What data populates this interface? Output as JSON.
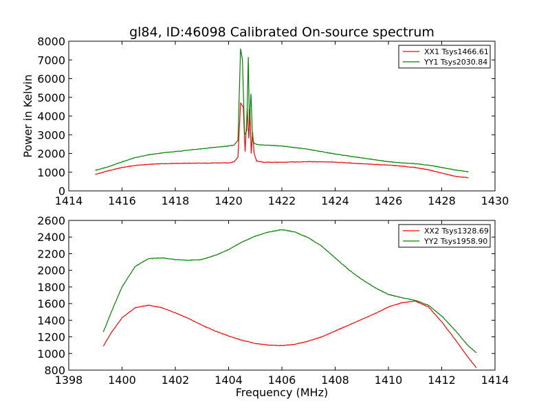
{
  "chart_data": [
    {
      "type": "line",
      "title": "gl84, ID:46098 Calibrated On-source spectrum",
      "xlabel": "",
      "ylabel": "Power in Kelvin",
      "xlim": [
        1414,
        1430
      ],
      "ylim": [
        0,
        8000
      ],
      "xticks": [
        1414,
        1416,
        1418,
        1420,
        1422,
        1424,
        1426,
        1428,
        1430
      ],
      "yticks": [
        0,
        1000,
        2000,
        3000,
        4000,
        5000,
        6000,
        7000,
        8000
      ],
      "legend_position": "top-right",
      "grid": false,
      "series": [
        {
          "name": "XX1 Tsys1466.61",
          "color": "#ff0000",
          "x": [
            1415.0,
            1415.5,
            1416.0,
            1416.5,
            1417.0,
            1417.5,
            1418.0,
            1418.5,
            1419.0,
            1419.5,
            1420.0,
            1420.2,
            1420.35,
            1420.45,
            1420.55,
            1420.62,
            1420.7,
            1420.76,
            1420.8,
            1420.85,
            1420.9,
            1420.96,
            1421.05,
            1421.3,
            1422.0,
            1423.0,
            1424.0,
            1425.0,
            1426.0,
            1426.5,
            1427.0,
            1427.5,
            1428.0,
            1428.5,
            1429.0
          ],
          "y": [
            880,
            1080,
            1250,
            1360,
            1420,
            1450,
            1470,
            1480,
            1480,
            1490,
            1500,
            1550,
            1800,
            4700,
            4500,
            2100,
            4400,
            2800,
            4350,
            2000,
            3150,
            2000,
            1600,
            1530,
            1530,
            1560,
            1540,
            1450,
            1380,
            1320,
            1250,
            1130,
            950,
            780,
            700
          ]
        },
        {
          "name": "YY1 Tsys2030.84",
          "color": "#008000",
          "x": [
            1415.0,
            1415.5,
            1416.0,
            1416.5,
            1417.0,
            1417.5,
            1418.0,
            1418.5,
            1419.0,
            1419.5,
            1420.0,
            1420.2,
            1420.35,
            1420.45,
            1420.52,
            1420.6,
            1420.68,
            1420.74,
            1420.78,
            1420.84,
            1420.9,
            1420.96,
            1421.05,
            1421.3,
            1422.0,
            1423.0,
            1424.0,
            1425.0,
            1426.0,
            1426.5,
            1427.0,
            1427.5,
            1428.0,
            1428.5,
            1429.0
          ],
          "y": [
            1100,
            1300,
            1550,
            1780,
            1930,
            2030,
            2100,
            2180,
            2250,
            2330,
            2400,
            2450,
            2700,
            7600,
            7000,
            3000,
            3200,
            7150,
            3500,
            5200,
            2700,
            2550,
            2480,
            2450,
            2400,
            2220,
            1970,
            1760,
            1560,
            1500,
            1450,
            1380,
            1250,
            1120,
            1020
          ]
        }
      ]
    },
    {
      "type": "line",
      "title": "",
      "xlabel": "Frequency (MHz)",
      "ylabel": "",
      "xlim": [
        1398,
        1414
      ],
      "ylim": [
        800,
        2600
      ],
      "xticks": [
        1398,
        1400,
        1402,
        1404,
        1406,
        1408,
        1410,
        1412,
        1414
      ],
      "yticks": [
        800,
        1000,
        1200,
        1400,
        1600,
        1800,
        2000,
        2200,
        2400,
        2600
      ],
      "legend_position": "top-right",
      "grid": false,
      "series": [
        {
          "name": "XX2 Tsys1328.69",
          "color": "#ff0000",
          "x": [
            1399.3,
            1399.6,
            1400.0,
            1400.5,
            1401.0,
            1401.5,
            1402.0,
            1402.5,
            1403.0,
            1403.5,
            1404.0,
            1404.5,
            1405.0,
            1405.5,
            1406.0,
            1406.5,
            1407.0,
            1407.5,
            1408.0,
            1408.5,
            1409.0,
            1409.5,
            1410.0,
            1410.5,
            1411.0,
            1411.5,
            1412.0,
            1412.5,
            1413.0,
            1413.3
          ],
          "y": [
            1090,
            1250,
            1430,
            1550,
            1580,
            1550,
            1490,
            1420,
            1340,
            1270,
            1210,
            1160,
            1120,
            1100,
            1095,
            1110,
            1150,
            1200,
            1270,
            1340,
            1410,
            1480,
            1560,
            1610,
            1630,
            1560,
            1380,
            1170,
            950,
            830
          ]
        },
        {
          "name": "YY2 Tsys1958.90",
          "color": "#008000",
          "x": [
            1399.3,
            1399.6,
            1400.0,
            1400.5,
            1401.0,
            1401.5,
            1402.0,
            1402.5,
            1403.0,
            1403.5,
            1404.0,
            1404.5,
            1405.0,
            1405.5,
            1406.0,
            1406.5,
            1407.0,
            1407.5,
            1408.0,
            1408.5,
            1409.0,
            1409.5,
            1410.0,
            1410.5,
            1411.0,
            1411.5,
            1412.0,
            1412.5,
            1413.0,
            1413.3
          ],
          "y": [
            1260,
            1500,
            1800,
            2050,
            2140,
            2150,
            2130,
            2120,
            2130,
            2180,
            2250,
            2340,
            2410,
            2460,
            2490,
            2460,
            2390,
            2290,
            2150,
            2010,
            1890,
            1790,
            1710,
            1670,
            1640,
            1580,
            1450,
            1280,
            1090,
            1010
          ]
        }
      ]
    }
  ]
}
